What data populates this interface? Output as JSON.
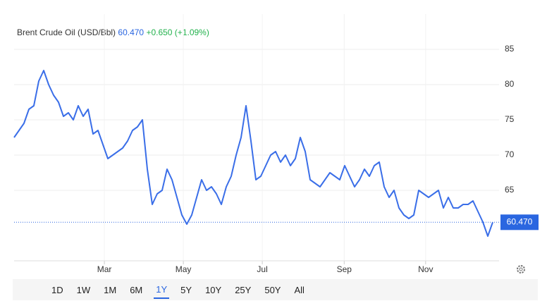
{
  "chart_data": {
    "type": "line",
    "title": "Brent Crude Oil (USD/Bbl)",
    "last_price": {
      "value": 60.47,
      "label": "60.470"
    },
    "change": "+0.650 (+1.09%)",
    "x": [
      0,
      1,
      2,
      3,
      4,
      5,
      6,
      7,
      8,
      9,
      10,
      11,
      12,
      13,
      14,
      15,
      16,
      17,
      18,
      19,
      20,
      21,
      22,
      23,
      24,
      25,
      26,
      27,
      28,
      29,
      30,
      31,
      32,
      33,
      34,
      35,
      36,
      37,
      38,
      39,
      40,
      41,
      42,
      43,
      44,
      45,
      46,
      47,
      48,
      49,
      50,
      51,
      52,
      53,
      54,
      55,
      56,
      57,
      58,
      59,
      60,
      61,
      62,
      63,
      64,
      65,
      66,
      67,
      68,
      69,
      70,
      71,
      72,
      73,
      74,
      75,
      76,
      77,
      78,
      79,
      80,
      81,
      82,
      83,
      84,
      85,
      86,
      87,
      88,
      89,
      90,
      91,
      92,
      93,
      94,
      95,
      96,
      97
    ],
    "series": [
      {
        "name": "Brent Crude Oil",
        "color": "#3a6ee8",
        "values": [
          72.5,
          73.5,
          74.5,
          76.5,
          77,
          80.5,
          82,
          80,
          78.5,
          77.5,
          75.5,
          76,
          75,
          77,
          75.5,
          76.5,
          73,
          73.5,
          71.5,
          69.5,
          70,
          70.5,
          71,
          72,
          73.5,
          74,
          75,
          68,
          63,
          64.5,
          65,
          68,
          66.5,
          64,
          61.5,
          60.2,
          61.5,
          64,
          66.5,
          65,
          65.5,
          64.5,
          63,
          65.5,
          67,
          70,
          72.5,
          77,
          72,
          66.5,
          67,
          68.5,
          70,
          70.5,
          69,
          70,
          68.5,
          69.5,
          72.5,
          70.5,
          66.5,
          66,
          65.5,
          66.5,
          67.5,
          67,
          66.5,
          68.5,
          67,
          65.5,
          66.5,
          68,
          67,
          68.5,
          69,
          65.5,
          64,
          65,
          62.5,
          61.5,
          61,
          61.5,
          65,
          64.5,
          64,
          64.5,
          65,
          62.5,
          64,
          62.5,
          62.5,
          63,
          63,
          63.5,
          62,
          60.5,
          58.5,
          60.47
        ]
      }
    ],
    "xlim": [
      0,
      99
    ],
    "xticks": [
      {
        "value": 18.3,
        "label": "Mar"
      },
      {
        "value": 34.3,
        "label": "May"
      },
      {
        "value": 50.3,
        "label": "Jul"
      },
      {
        "value": 66.9,
        "label": "Sep"
      },
      {
        "value": 83.4,
        "label": "Nov"
      }
    ],
    "ylim": [
      55,
      90
    ],
    "yticks": [
      65,
      70,
      75,
      80,
      85
    ],
    "grid": true,
    "ranges": [
      "1D",
      "1W",
      "1M",
      "6M",
      "1Y",
      "5Y",
      "10Y",
      "25Y",
      "50Y",
      "All"
    ],
    "selected_range": "1Y"
  }
}
